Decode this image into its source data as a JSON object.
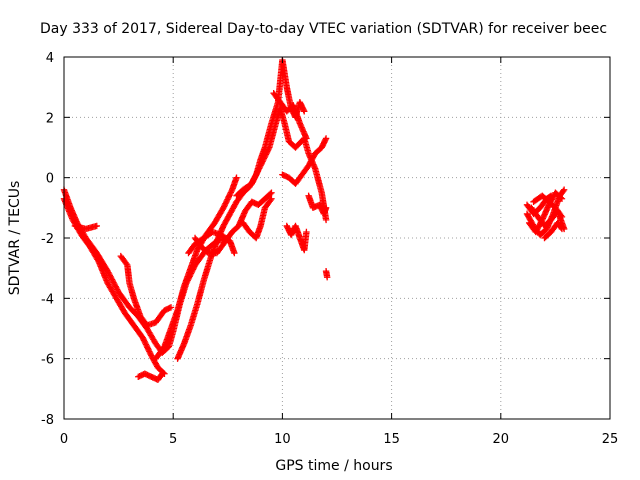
{
  "chart_data": {
    "type": "scatter",
    "title": "Day 333 of 2017, Sidereal Day-to-day VTEC variation (SDTVAR) for receiver beec",
    "xlabel": "GPS time / hours",
    "ylabel": "SDTVAR / TECUs",
    "xlim": [
      0,
      25
    ],
    "ylim": [
      -8,
      4
    ],
    "xticks": [
      "0",
      "5",
      "10",
      "15",
      "20",
      "25"
    ],
    "yticks": [
      "-8",
      "-6",
      "-4",
      "-2",
      "0",
      "2",
      "4"
    ],
    "grid": true,
    "marker": "plus",
    "color": "#ff0000",
    "series": [
      {
        "tracks": [
          [
            [
              0.0,
              -0.4
            ],
            [
              0.3,
              -1.0
            ],
            [
              0.6,
              -1.5
            ],
            [
              1.0,
              -2.0
            ],
            [
              1.5,
              -2.5
            ],
            [
              2.0,
              -3.1
            ],
            [
              2.5,
              -3.8
            ],
            [
              3.0,
              -4.3
            ],
            [
              3.4,
              -4.6
            ],
            [
              3.8,
              -5.0
            ],
            [
              4.2,
              -5.5
            ],
            [
              4.5,
              -5.8
            ],
            [
              4.8,
              -5.6
            ],
            [
              5.0,
              -5.1
            ],
            [
              5.3,
              -4.2
            ],
            [
              5.6,
              -3.5
            ],
            [
              6.0,
              -2.9
            ],
            [
              6.5,
              -2.4
            ],
            [
              7.0,
              -2.1
            ],
            [
              7.5,
              -2.0
            ]
          ],
          [
            [
              0.0,
              -0.7
            ],
            [
              0.4,
              -1.4
            ],
            [
              0.8,
              -1.9
            ],
            [
              1.2,
              -2.3
            ],
            [
              1.6,
              -2.8
            ],
            [
              2.0,
              -3.5
            ],
            [
              2.4,
              -4.0
            ],
            [
              2.8,
              -4.5
            ],
            [
              3.2,
              -4.9
            ],
            [
              3.6,
              -5.3
            ],
            [
              4.0,
              -5.9
            ],
            [
              4.3,
              -6.3
            ],
            [
              4.6,
              -6.5
            ]
          ],
          [
            [
              3.4,
              -6.6
            ],
            [
              3.7,
              -6.5
            ],
            [
              4.0,
              -6.6
            ],
            [
              4.3,
              -6.7
            ],
            [
              4.5,
              -6.5
            ]
          ],
          [
            [
              2.6,
              -2.6
            ],
            [
              2.9,
              -2.9
            ],
            [
              3.0,
              -3.5
            ],
            [
              3.2,
              -4.0
            ],
            [
              3.5,
              -4.6
            ],
            [
              3.8,
              -4.9
            ],
            [
              4.2,
              -4.8
            ],
            [
              4.6,
              -4.4
            ],
            [
              4.9,
              -4.3
            ]
          ],
          [
            [
              0.5,
              -1.6
            ],
            [
              1.0,
              -1.7
            ],
            [
              1.5,
              -1.6
            ]
          ],
          [
            [
              4.2,
              -6.0
            ],
            [
              4.6,
              -5.6
            ],
            [
              4.9,
              -5.0
            ],
            [
              5.2,
              -4.4
            ],
            [
              5.5,
              -3.6
            ],
            [
              5.8,
              -3.0
            ],
            [
              6.1,
              -2.4
            ],
            [
              6.5,
              -1.9
            ],
            [
              6.9,
              -1.5
            ],
            [
              7.3,
              -1.0
            ],
            [
              7.7,
              -0.4
            ],
            [
              7.9,
              0.0
            ]
          ],
          [
            [
              5.2,
              -6.0
            ],
            [
              5.5,
              -5.5
            ],
            [
              5.8,
              -4.9
            ],
            [
              6.1,
              -4.2
            ],
            [
              6.4,
              -3.4
            ],
            [
              6.7,
              -2.7
            ],
            [
              7.0,
              -2.1
            ],
            [
              7.3,
              -1.6
            ],
            [
              7.6,
              -1.2
            ],
            [
              7.9,
              -0.8
            ],
            [
              8.2,
              -0.5
            ],
            [
              8.5,
              -0.3
            ],
            [
              8.8,
              0.1
            ],
            [
              9.0,
              0.6
            ],
            [
              9.2,
              1.0
            ],
            [
              9.5,
              1.8
            ],
            [
              9.8,
              2.5
            ],
            [
              10.0,
              3.9
            ],
            [
              10.2,
              3.0
            ],
            [
              10.4,
              2.3
            ],
            [
              10.6,
              2.0
            ],
            [
              10.8,
              2.5
            ],
            [
              11.0,
              2.2
            ]
          ],
          [
            [
              5.7,
              -2.5
            ],
            [
              6.0,
              -2.2
            ],
            [
              6.4,
              -2.0
            ],
            [
              6.8,
              -1.8
            ],
            [
              7.2,
              -1.9
            ],
            [
              7.6,
              -2.1
            ],
            [
              7.8,
              -2.5
            ]
          ],
          [
            [
              7.9,
              -0.6
            ],
            [
              8.2,
              -0.4
            ],
            [
              8.6,
              -0.2
            ],
            [
              9.0,
              0.4
            ],
            [
              9.4,
              1.0
            ],
            [
              9.7,
              1.8
            ],
            [
              9.9,
              2.3
            ],
            [
              10.1,
              1.8
            ],
            [
              10.3,
              1.2
            ],
            [
              10.6,
              1.0
            ],
            [
              11.0,
              1.3
            ],
            [
              11.2,
              0.8
            ],
            [
              11.5,
              0.3
            ],
            [
              11.8,
              -0.5
            ],
            [
              12.0,
              -1.4
            ]
          ],
          [
            [
              9.6,
              2.8
            ],
            [
              9.9,
              2.5
            ],
            [
              10.2,
              2.2
            ],
            [
              10.5,
              2.4
            ],
            [
              10.8,
              1.8
            ],
            [
              11.1,
              1.3
            ]
          ],
          [
            [
              6.0,
              -2.0
            ],
            [
              6.3,
              -2.3
            ],
            [
              6.6,
              -2.5
            ],
            [
              7.0,
              -2.5
            ],
            [
              7.3,
              -2.2
            ],
            [
              7.7,
              -1.8
            ],
            [
              8.0,
              -1.6
            ],
            [
              8.3,
              -1.1
            ],
            [
              8.6,
              -0.8
            ],
            [
              8.9,
              -0.9
            ],
            [
              9.2,
              -0.7
            ],
            [
              9.5,
              -0.5
            ]
          ],
          [
            [
              8.2,
              -1.5
            ],
            [
              8.5,
              -1.8
            ],
            [
              8.8,
              -2.0
            ],
            [
              9.0,
              -1.6
            ],
            [
              9.2,
              -1.0
            ],
            [
              9.5,
              -0.7
            ]
          ],
          [
            [
              10.0,
              0.1
            ],
            [
              10.3,
              0.0
            ],
            [
              10.6,
              -0.2
            ],
            [
              10.9,
              0.1
            ],
            [
              11.2,
              0.4
            ],
            [
              11.5,
              0.8
            ],
            [
              11.8,
              1.0
            ],
            [
              12.0,
              1.3
            ]
          ],
          [
            [
              10.2,
              -1.6
            ],
            [
              10.4,
              -1.9
            ],
            [
              10.6,
              -1.6
            ],
            [
              10.8,
              -2.0
            ],
            [
              11.0,
              -2.4
            ],
            [
              11.1,
              -1.8
            ]
          ],
          [
            [
              11.2,
              -0.6
            ],
            [
              11.4,
              -1.0
            ],
            [
              11.7,
              -0.9
            ],
            [
              11.9,
              -1.2
            ],
            [
              12.0,
              -1.0
            ]
          ],
          [
            [
              12.0,
              -3.1
            ],
            [
              12.05,
              -3.3
            ]
          ],
          [
            [
              21.2,
              -1.2
            ],
            [
              21.5,
              -1.6
            ],
            [
              21.8,
              -1.9
            ],
            [
              22.1,
              -1.7
            ],
            [
              22.4,
              -1.2
            ],
            [
              22.7,
              -0.6
            ],
            [
              22.9,
              -0.4
            ]
          ],
          [
            [
              21.3,
              -1.5
            ],
            [
              21.6,
              -1.8
            ],
            [
              21.9,
              -1.4
            ],
            [
              22.2,
              -0.9
            ],
            [
              22.5,
              -0.5
            ],
            [
              22.8,
              -0.7
            ]
          ],
          [
            [
              21.4,
              -1.0
            ],
            [
              21.7,
              -1.3
            ],
            [
              22.0,
              -1.6
            ],
            [
              22.3,
              -1.4
            ],
            [
              22.6,
              -1.1
            ],
            [
              22.9,
              -1.7
            ]
          ],
          [
            [
              21.5,
              -0.8
            ],
            [
              21.9,
              -0.6
            ],
            [
              22.2,
              -0.8
            ],
            [
              22.5,
              -1.0
            ],
            [
              22.8,
              -1.3
            ]
          ],
          [
            [
              21.2,
              -0.9
            ],
            [
              21.5,
              -1.2
            ],
            [
              21.8,
              -1.0
            ],
            [
              22.1,
              -0.7
            ],
            [
              22.3,
              -0.6
            ]
          ],
          [
            [
              22.0,
              -2.0
            ],
            [
              22.3,
              -1.8
            ],
            [
              22.6,
              -1.5
            ],
            [
              22.8,
              -1.7
            ]
          ]
        ]
      }
    ]
  }
}
